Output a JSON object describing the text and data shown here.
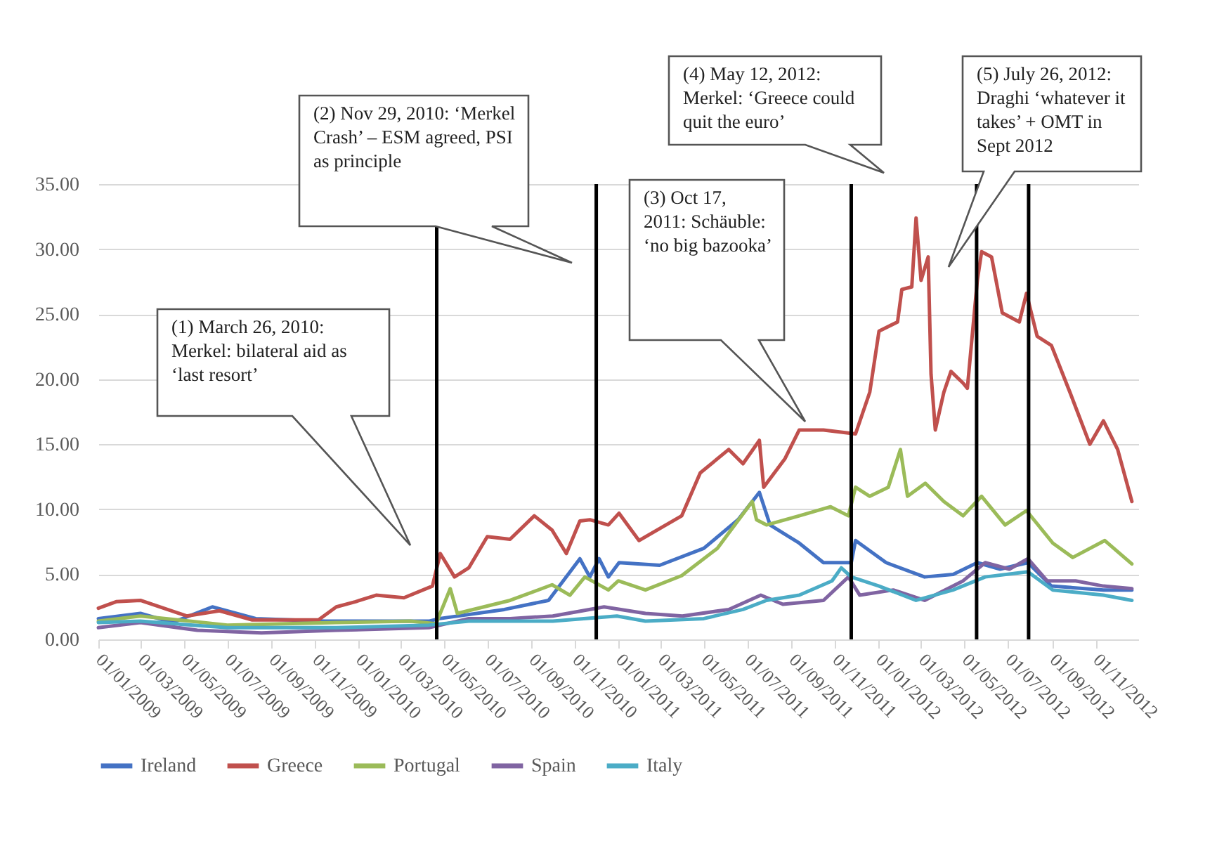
{
  "chart_data": {
    "type": "line",
    "xlim": [
      "2009-01-01",
      "2012-12-31"
    ],
    "xticks": [
      {
        "value": "2009-01-01",
        "label": "01/01/2009"
      },
      {
        "value": "2009-03-01",
        "label": "01/03/2009"
      },
      {
        "value": "2009-05-01",
        "label": "01/05/2009"
      },
      {
        "value": "2009-07-01",
        "label": "01/07/2009"
      },
      {
        "value": "2009-09-01",
        "label": "01/09/2009"
      },
      {
        "value": "2009-11-01",
        "label": "01/11/2009"
      },
      {
        "value": "2010-01-01",
        "label": "01/01/2010"
      },
      {
        "value": "2010-03-01",
        "label": "01/03/2010"
      },
      {
        "value": "2010-05-01",
        "label": "01/05/2010"
      },
      {
        "value": "2010-07-01",
        "label": "01/07/2010"
      },
      {
        "value": "2010-09-01",
        "label": "01/09/2010"
      },
      {
        "value": "2010-11-01",
        "label": "01/11/2010"
      },
      {
        "value": "2011-01-01",
        "label": "01/01/2011"
      },
      {
        "value": "2011-03-01",
        "label": "01/03/2011"
      },
      {
        "value": "2011-05-01",
        "label": "01/05/2011"
      },
      {
        "value": "2011-07-01",
        "label": "01/07/2011"
      },
      {
        "value": "2011-09-01",
        "label": "01/09/2011"
      },
      {
        "value": "2011-11-01",
        "label": "01/11/2011"
      },
      {
        "value": "2012-01-01",
        "label": "01/01/2012"
      },
      {
        "value": "2012-03-01",
        "label": "01/03/2012"
      },
      {
        "value": "2012-05-01",
        "label": "01/05/2012"
      },
      {
        "value": "2012-07-01",
        "label": "01/07/2012"
      },
      {
        "value": "2012-09-01",
        "label": "01/09/2012"
      },
      {
        "value": "2012-11-01",
        "label": "01/11/2012"
      }
    ],
    "ylim": [
      0,
      35
    ],
    "yticks": [
      {
        "value": 0,
        "label": "0.00"
      },
      {
        "value": 5,
        "label": "5.00"
      },
      {
        "value": 10,
        "label": "10.00"
      },
      {
        "value": 15,
        "label": "15.00"
      },
      {
        "value": 20,
        "label": "20.00"
      },
      {
        "value": 25,
        "label": "25.00"
      },
      {
        "value": 30,
        "label": "30.00"
      },
      {
        "value": 35,
        "label": "35.00"
      }
    ],
    "grid": "y",
    "legend": "bottom",
    "marker": "none",
    "line_style": "solid",
    "series": [
      {
        "name": "Ireland",
        "color": "#4472c4",
        "x": [
          "2009-01-01",
          "2009-03-01",
          "2009-04-15",
          "2009-06-10",
          "2009-08-10",
          "2009-11-15",
          "2010-04-10",
          "2010-04-25",
          "2010-07-25",
          "2010-09-25",
          "2010-11-08",
          "2010-11-22",
          "2010-12-05",
          "2010-12-18",
          "2011-01-02",
          "2011-02-28",
          "2011-05-01",
          "2011-06-18",
          "2011-07-18",
          "2011-08-02",
          "2011-09-12",
          "2011-10-16",
          "2011-11-24",
          "2011-11-30",
          "2012-01-12",
          "2012-03-06",
          "2012-04-15",
          "2012-05-19",
          "2012-06-20",
          "2012-07-29",
          "2012-08-31",
          "2012-11-12",
          "2012-12-22"
        ],
        "values": [
          1.6,
          2.0,
          1.3,
          2.5,
          1.6,
          1.4,
          1.4,
          1.6,
          2.3,
          3.0,
          6.2,
          4.8,
          6.2,
          4.8,
          5.9,
          5.7,
          7.0,
          9.2,
          11.3,
          8.8,
          7.4,
          5.9,
          5.9,
          7.6,
          5.9,
          4.8,
          5.0,
          5.9,
          5.4,
          5.9,
          4.1,
          3.8,
          3.8
        ]
      },
      {
        "name": "Greece",
        "color": "#c0504d",
        "x": [
          "2009-01-01",
          "2009-01-26",
          "2009-03-01",
          "2009-05-05",
          "2009-06-20",
          "2009-08-05",
          "2009-11-06",
          "2009-12-01",
          "2009-12-28",
          "2010-01-26",
          "2010-03-06",
          "2010-04-15",
          "2010-04-26",
          "2010-05-16",
          "2010-06-05",
          "2010-07-01",
          "2010-08-02",
          "2010-09-05",
          "2010-09-30",
          "2010-10-20",
          "2010-11-08",
          "2010-11-22",
          "2010-12-18",
          "2011-01-02",
          "2011-01-30",
          "2011-03-31",
          "2011-04-26",
          "2011-06-05",
          "2011-06-25",
          "2011-07-18",
          "2011-07-24",
          "2011-08-23",
          "2011-09-12",
          "2011-10-16",
          "2011-11-30",
          "2011-12-20",
          "2012-01-02",
          "2012-01-28",
          "2012-02-03",
          "2012-02-17",
          "2012-02-23",
          "2012-03-01",
          "2012-03-11",
          "2012-03-15",
          "2012-03-21",
          "2012-04-02",
          "2012-04-12",
          "2012-04-29",
          "2012-05-05",
          "2012-05-19",
          "2012-05-25",
          "2012-06-08",
          "2012-06-23",
          "2012-07-17",
          "2012-07-27",
          "2012-08-11",
          "2012-08-31",
          "2012-09-26",
          "2012-10-24",
          "2012-11-12",
          "2012-12-02",
          "2012-12-22"
        ],
        "values": [
          2.4,
          2.9,
          3.0,
          1.8,
          2.2,
          1.5,
          1.5,
          2.5,
          2.9,
          3.4,
          3.2,
          4.1,
          6.6,
          4.8,
          5.5,
          7.9,
          7.7,
          9.5,
          8.4,
          6.6,
          9.1,
          9.2,
          8.8,
          9.7,
          7.6,
          9.5,
          12.8,
          14.6,
          13.5,
          15.3,
          11.7,
          13.9,
          16.1,
          16.1,
          15.8,
          19.0,
          23.7,
          24.4,
          26.9,
          27.1,
          32.4,
          27.6,
          29.4,
          20.4,
          16.1,
          19.0,
          20.6,
          19.7,
          19.3,
          27.6,
          29.8,
          29.4,
          25.1,
          24.4,
          26.6,
          23.3,
          22.6,
          19.0,
          15.0,
          16.8,
          14.6,
          10.6
        ]
      },
      {
        "name": "Portugal",
        "color": "#9bbb59",
        "x": [
          "2009-01-01",
          "2009-03-01",
          "2009-07-01",
          "2009-12-01",
          "2010-03-15",
          "2010-04-20",
          "2010-05-10",
          "2010-05-20",
          "2010-08-02",
          "2010-09-30",
          "2010-10-25",
          "2010-11-15",
          "2010-12-18",
          "2011-01-01",
          "2011-02-08",
          "2011-03-31",
          "2011-05-20",
          "2011-07-08",
          "2011-07-14",
          "2011-07-28",
          "2011-09-12",
          "2011-10-26",
          "2011-11-20",
          "2011-11-30",
          "2011-12-20",
          "2012-01-15",
          "2012-02-01",
          "2012-02-11",
          "2012-03-07",
          "2012-04-02",
          "2012-04-29",
          "2012-05-25",
          "2012-06-27",
          "2012-07-27",
          "2012-09-02",
          "2012-09-30",
          "2012-11-14",
          "2012-12-22"
        ],
        "values": [
          1.4,
          1.8,
          1.1,
          1.3,
          1.4,
          1.2,
          3.9,
          2.0,
          3.0,
          4.2,
          3.4,
          4.8,
          3.8,
          4.5,
          3.8,
          4.9,
          7.0,
          10.6,
          9.2,
          8.8,
          9.5,
          10.2,
          9.5,
          11.7,
          11.0,
          11.7,
          14.6,
          11.0,
          12.0,
          10.6,
          9.5,
          11.0,
          8.8,
          9.9,
          7.4,
          6.3,
          7.6,
          5.8
        ]
      },
      {
        "name": "Spain",
        "color": "#8064a2",
        "x": [
          "2009-01-01",
          "2009-03-01",
          "2009-05-20",
          "2009-08-18",
          "2009-12-01",
          "2010-04-10",
          "2010-06-05",
          "2010-08-02",
          "2010-10-01",
          "2010-12-12",
          "2011-02-08",
          "2011-04-01",
          "2011-06-05",
          "2011-07-20",
          "2011-08-20",
          "2011-10-16",
          "2011-11-20",
          "2011-12-06",
          "2012-01-22",
          "2012-03-06",
          "2012-04-29",
          "2012-05-30",
          "2012-07-03",
          "2012-07-29",
          "2012-08-25",
          "2012-10-04",
          "2012-11-12",
          "2012-12-22"
        ],
        "values": [
          0.9,
          1.3,
          0.7,
          0.5,
          0.7,
          0.9,
          1.6,
          1.6,
          1.8,
          2.5,
          2.0,
          1.8,
          2.3,
          3.4,
          2.7,
          3.0,
          4.8,
          3.4,
          3.8,
          3.0,
          4.5,
          5.9,
          5.4,
          6.2,
          4.5,
          4.5,
          4.1,
          3.9
        ]
      },
      {
        "name": "Italy",
        "color": "#4bacc6",
        "x": [
          "2009-01-01",
          "2009-03-01",
          "2009-07-01",
          "2009-12-01",
          "2010-04-10",
          "2010-06-05",
          "2010-08-02",
          "2010-10-01",
          "2010-12-30",
          "2011-02-08",
          "2011-05-01",
          "2011-06-25",
          "2011-07-28",
          "2011-09-12",
          "2011-10-28",
          "2011-11-10",
          "2011-11-24",
          "2012-01-02",
          "2012-02-23",
          "2012-04-15",
          "2012-05-30",
          "2012-07-29",
          "2012-09-02",
          "2012-11-12",
          "2012-12-22"
        ],
        "values": [
          1.3,
          1.4,
          0.9,
          0.9,
          1.1,
          1.4,
          1.4,
          1.4,
          1.8,
          1.4,
          1.6,
          2.3,
          3.0,
          3.4,
          4.5,
          5.5,
          4.8,
          4.1,
          3.0,
          3.8,
          4.8,
          5.2,
          3.8,
          3.4,
          3.0
        ]
      }
    ],
    "ref_lines": [
      {
        "axis": "x",
        "value": "2010-04-21",
        "color": "#000000"
      },
      {
        "axis": "x",
        "value": "2010-12-01",
        "color": "#000000"
      },
      {
        "axis": "x",
        "value": "2011-11-24",
        "color": "#000000"
      },
      {
        "axis": "x",
        "value": "2012-05-18",
        "color": "#000000"
      },
      {
        "axis": "x",
        "value": "2012-07-30",
        "color": "#000000"
      }
    ],
    "annotations": [
      "(1) March 26, 2010: Merkel: bilateral aid as ‘last resort’",
      "(2) Nov 29, 2010: ‘Merkel Crash’ – ESM agreed, PSI as principle",
      "(3) Oct 17, 2011: Schäuble: ‘no big bazooka’",
      "(4) May 12, 2012: Merkel: ‘Greece could quit the euro’",
      "(5) July 26, 2012: Draghi ‘whatever it takes’ + OMT in Sept 2012"
    ]
  }
}
